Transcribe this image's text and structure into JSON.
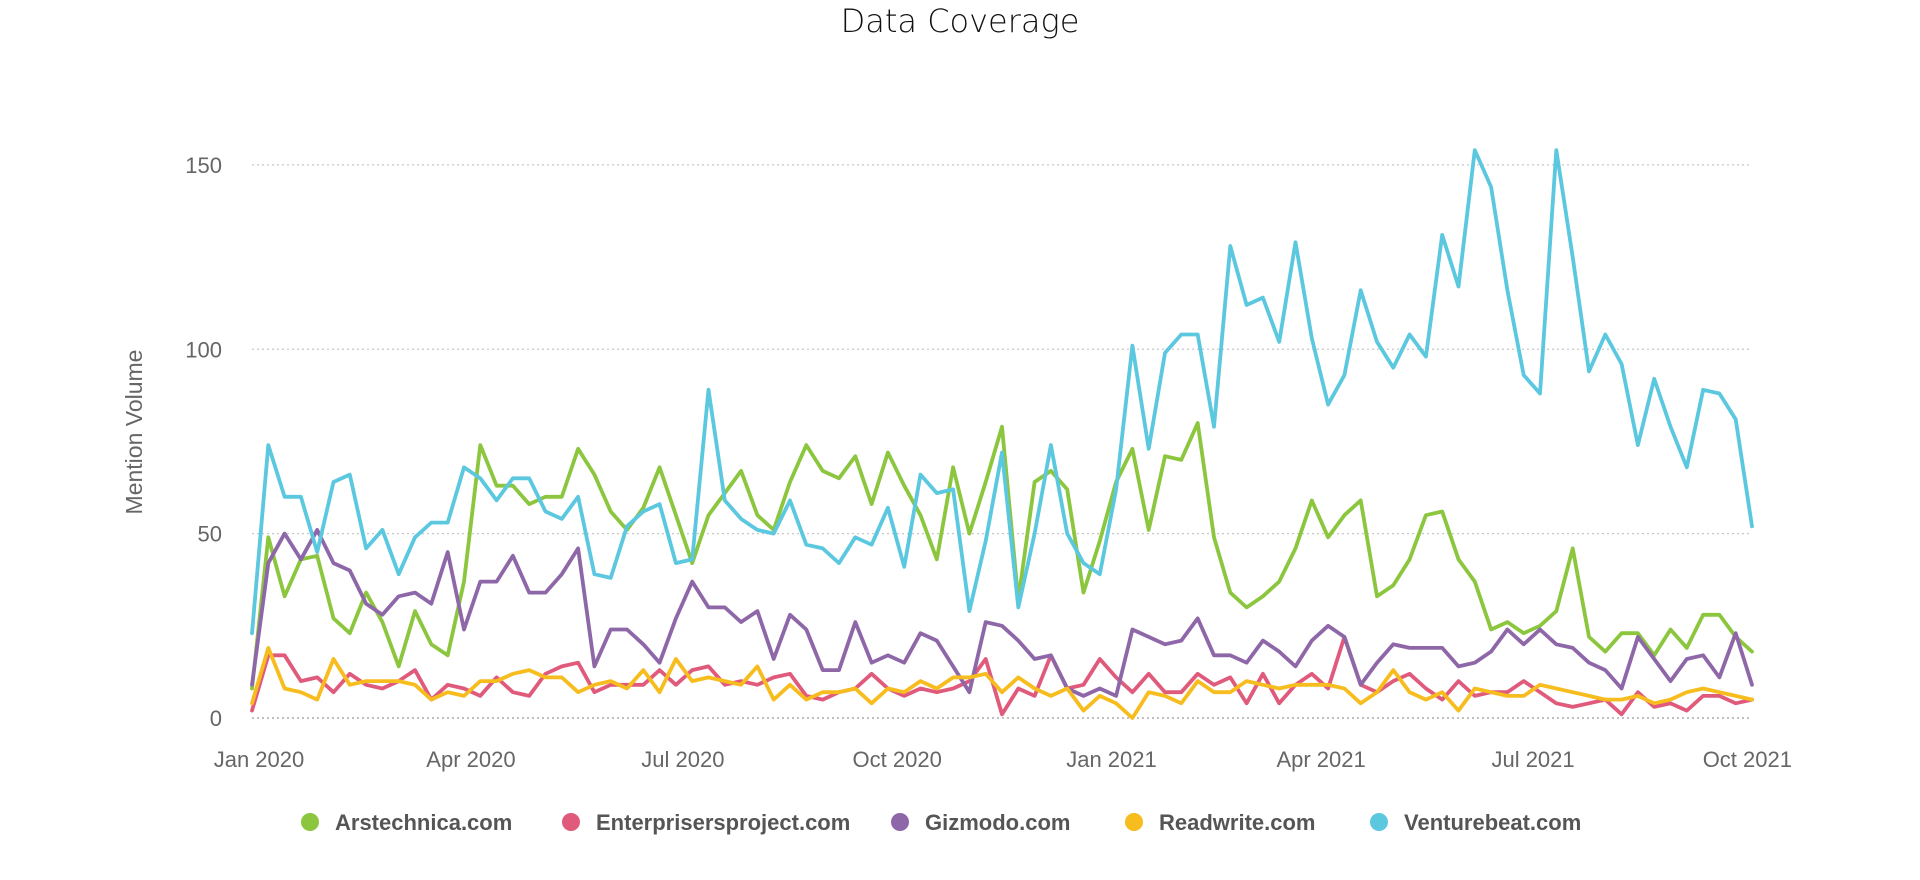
{
  "chart_data": {
    "type": "line",
    "title": "Data Coverage",
    "xlabel": "",
    "ylabel": "Mention Volume",
    "xlim": [
      "2019-12-29",
      "2021-10-03"
    ],
    "ylim": [
      0,
      160
    ],
    "yticks": [
      0,
      50,
      100,
      150
    ],
    "xticks": [
      {
        "date": "2020-01-01",
        "label": "Jan 2020"
      },
      {
        "date": "2020-04-01",
        "label": "Apr 2020"
      },
      {
        "date": "2020-07-01",
        "label": "Jul 2020"
      },
      {
        "date": "2020-10-01",
        "label": "Oct 2020"
      },
      {
        "date": "2021-01-01",
        "label": "Jan 2021"
      },
      {
        "date": "2021-04-01",
        "label": "Apr 2021"
      },
      {
        "date": "2021-07-01",
        "label": "Jul 2021"
      },
      {
        "date": "2021-10-01",
        "label": "Oct 2021"
      }
    ],
    "grid": "horizontal dotted",
    "legend_position": "bottom",
    "x": [
      "2019-12-29",
      "2020-01-05",
      "2020-01-12",
      "2020-01-19",
      "2020-01-26",
      "2020-02-02",
      "2020-02-09",
      "2020-02-16",
      "2020-02-23",
      "2020-03-01",
      "2020-03-08",
      "2020-03-15",
      "2020-03-22",
      "2020-03-29",
      "2020-04-05",
      "2020-04-12",
      "2020-04-19",
      "2020-04-26",
      "2020-05-03",
      "2020-05-10",
      "2020-05-17",
      "2020-05-24",
      "2020-05-31",
      "2020-06-07",
      "2020-06-14",
      "2020-06-21",
      "2020-06-28",
      "2020-07-05",
      "2020-07-12",
      "2020-07-19",
      "2020-07-26",
      "2020-08-02",
      "2020-08-09",
      "2020-08-16",
      "2020-08-23",
      "2020-08-30",
      "2020-09-06",
      "2020-09-13",
      "2020-09-20",
      "2020-09-27",
      "2020-10-04",
      "2020-10-11",
      "2020-10-18",
      "2020-10-25",
      "2020-11-01",
      "2020-11-08",
      "2020-11-15",
      "2020-11-22",
      "2020-11-29",
      "2020-12-06",
      "2020-12-13",
      "2020-12-20",
      "2020-12-27",
      "2021-01-03",
      "2021-01-10",
      "2021-01-17",
      "2021-01-24",
      "2021-01-31",
      "2021-02-07",
      "2021-02-14",
      "2021-02-21",
      "2021-02-28",
      "2021-03-07",
      "2021-03-14",
      "2021-03-21",
      "2021-03-28",
      "2021-04-04",
      "2021-04-11",
      "2021-04-18",
      "2021-04-25",
      "2021-05-02",
      "2021-05-09",
      "2021-05-16",
      "2021-05-23",
      "2021-05-30",
      "2021-06-06",
      "2021-06-13",
      "2021-06-20",
      "2021-06-27",
      "2021-07-04",
      "2021-07-11",
      "2021-07-18",
      "2021-07-25",
      "2021-08-01",
      "2021-08-08",
      "2021-08-15",
      "2021-08-22",
      "2021-08-29",
      "2021-09-05",
      "2021-09-12",
      "2021-09-19",
      "2021-09-26",
      "2021-10-03"
    ],
    "series": [
      {
        "name": "Arstechnica.com",
        "color": "#8cc63f",
        "values": [
          8,
          49,
          33,
          43,
          44,
          27,
          23,
          34,
          26,
          14,
          29,
          20,
          17,
          37,
          74,
          63,
          63,
          58,
          60,
          60,
          73,
          66,
          56,
          51,
          57,
          68,
          55,
          42,
          55,
          61,
          67,
          55,
          51,
          64,
          74,
          67,
          65,
          71,
          58,
          72,
          63,
          55,
          43,
          68,
          50,
          64,
          79,
          32,
          64,
          67,
          62,
          34,
          48,
          64,
          73,
          51,
          71,
          70,
          80,
          49,
          34,
          30,
          33,
          37,
          46,
          59,
          49,
          55,
          59,
          33,
          36,
          43,
          55,
          56,
          43,
          37,
          24,
          26,
          23,
          25,
          29,
          46,
          22,
          18,
          23,
          23,
          17,
          24,
          19,
          28,
          28,
          22,
          18
        ]
      },
      {
        "name": "Enterprisersproject.com",
        "color": "#e05a7c",
        "values": [
          2,
          17,
          17,
          10,
          11,
          7,
          12,
          9,
          8,
          10,
          13,
          5,
          9,
          8,
          6,
          11,
          7,
          6,
          12,
          14,
          15,
          7,
          9,
          9,
          9,
          13,
          9,
          13,
          14,
          9,
          10,
          9,
          11,
          12,
          6,
          5,
          7,
          8,
          12,
          8,
          6,
          8,
          7,
          8,
          10,
          16,
          1,
          8,
          6,
          17,
          8,
          9,
          16,
          11,
          7,
          12,
          7,
          7,
          12,
          9,
          11,
          4,
          12,
          4,
          9,
          12,
          8,
          22,
          9,
          7,
          10,
          12,
          8,
          5,
          10,
          6,
          7,
          7,
          10,
          7,
          4,
          3,
          4,
          5,
          1,
          7,
          3,
          4,
          2,
          6,
          6,
          4,
          5
        ]
      },
      {
        "name": "Gizmodo.com",
        "color": "#8e67a8",
        "values": [
          9,
          42,
          50,
          43,
          51,
          42,
          40,
          31,
          28,
          33,
          34,
          31,
          45,
          24,
          37,
          37,
          44,
          34,
          34,
          39,
          46,
          14,
          24,
          24,
          20,
          15,
          27,
          37,
          30,
          30,
          26,
          29,
          16,
          28,
          24,
          13,
          13,
          26,
          15,
          17,
          15,
          23,
          21,
          14,
          7,
          26,
          25,
          21,
          16,
          17,
          8,
          6,
          8,
          6,
          24,
          22,
          20,
          21,
          27,
          17,
          17,
          15,
          21,
          18,
          14,
          21,
          25,
          22,
          9,
          15,
          20,
          19,
          19,
          19,
          14,
          15,
          18,
          24,
          20,
          24,
          20,
          19,
          15,
          13,
          8,
          22,
          16,
          10,
          16,
          17,
          11,
          23,
          9
        ]
      },
      {
        "name": "Readwrite.com",
        "color": "#f7bc1d",
        "values": [
          4,
          19,
          8,
          7,
          5,
          16,
          9,
          10,
          10,
          10,
          9,
          5,
          7,
          6,
          10,
          10,
          12,
          13,
          11,
          11,
          7,
          9,
          10,
          8,
          13,
          7,
          16,
          10,
          11,
          10,
          9,
          14,
          5,
          9,
          5,
          7,
          7,
          8,
          4,
          8,
          7,
          10,
          8,
          11,
          11,
          12,
          7,
          11,
          8,
          6,
          8,
          2,
          6,
          4,
          0,
          7,
          6,
          4,
          10,
          7,
          7,
          10,
          9,
          8,
          9,
          9,
          9,
          8,
          4,
          7,
          13,
          7,
          5,
          7,
          2,
          8,
          7,
          6,
          6,
          9,
          8,
          7,
          6,
          5,
          5,
          6,
          4,
          5,
          7,
          8,
          7,
          6,
          5
        ]
      },
      {
        "name": "Venturebeat.com",
        "color": "#5bc8e0",
        "values": [
          23,
          74,
          60,
          60,
          45,
          64,
          66,
          46,
          51,
          39,
          49,
          53,
          53,
          68,
          65,
          59,
          65,
          65,
          56,
          54,
          60,
          39,
          38,
          52,
          56,
          58,
          42,
          43,
          89,
          59,
          54,
          51,
          50,
          59,
          47,
          46,
          42,
          49,
          47,
          57,
          41,
          66,
          61,
          62,
          29,
          48,
          72,
          30,
          50,
          74,
          50,
          42,
          39,
          62,
          101,
          73,
          99,
          104,
          104,
          79,
          128,
          112,
          114,
          102,
          129,
          103,
          85,
          93,
          116,
          102,
          95,
          104,
          98,
          131,
          117,
          154,
          144,
          116,
          93,
          88,
          154,
          125,
          94,
          104,
          96,
          74,
          92,
          79,
          68,
          89,
          88,
          81,
          52
        ]
      }
    ]
  }
}
